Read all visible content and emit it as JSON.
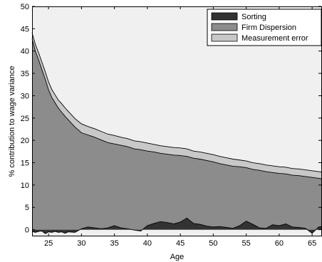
{
  "chart_data": {
    "type": "area",
    "title": "",
    "xlabel": "Age",
    "ylabel": "% contribution to wage variance",
    "xlim": [
      22.5,
      66.5
    ],
    "ylim": [
      -1.5,
      50
    ],
    "xticks": [
      25,
      30,
      35,
      40,
      45,
      50,
      55,
      60,
      65
    ],
    "yticks": [
      0,
      5,
      10,
      15,
      20,
      25,
      30,
      35,
      40,
      45,
      50
    ],
    "grid": false,
    "legend": "top-right",
    "x": [
      22.5,
      23,
      23.5,
      24,
      24.5,
      25,
      25.5,
      26,
      26.5,
      27,
      27.5,
      28,
      29,
      30,
      31,
      32,
      33,
      34,
      35,
      36,
      37,
      38,
      39,
      40,
      41,
      42,
      43,
      44,
      45,
      46,
      47,
      48,
      49,
      50,
      51,
      52,
      53,
      54,
      55,
      56,
      57,
      58,
      59,
      60,
      61,
      62,
      63,
      64,
      65,
      66,
      66.5
    ],
    "series": [
      {
        "name": "Sorting",
        "color": "#333333",
        "values": [
          -0.4,
          -0.6,
          -0.4,
          -0.3,
          -0.9,
          -0.5,
          -0.6,
          -0.4,
          -0.6,
          -0.5,
          -0.8,
          -0.5,
          -0.6,
          0.2,
          0.6,
          0.4,
          0.2,
          0.4,
          0.9,
          0.4,
          0.2,
          -0.1,
          -0.3,
          0.9,
          1.4,
          1.8,
          1.6,
          1.3,
          1.7,
          2.6,
          1.4,
          1.2,
          0.8,
          0.6,
          0.7,
          0.5,
          0.3,
          0.9,
          1.9,
          1.2,
          0.4,
          0.3,
          1.1,
          0.9,
          1.3,
          0.6,
          0.5,
          0.3,
          -0.8,
          0.6,
          0.7
        ]
      },
      {
        "name": "Firm Dispersion",
        "color": "#8c8c8c",
        "values": [
          42.8,
          40.0,
          38.0,
          35.8,
          33.7,
          31.3,
          29.6,
          28.4,
          27.2,
          26.3,
          25.4,
          24.6,
          23.0,
          21.7,
          21.2,
          20.7,
          20.1,
          19.5,
          19.2,
          18.9,
          18.6,
          18.1,
          17.9,
          17.6,
          17.4,
          17.1,
          16.9,
          16.7,
          16.6,
          16.4,
          16.0,
          15.8,
          15.5,
          15.2,
          14.8,
          14.5,
          14.2,
          14.1,
          13.9,
          13.5,
          13.3,
          13.0,
          12.8,
          12.6,
          12.5,
          12.2,
          12.1,
          11.9,
          11.7,
          11.5,
          11.4
        ]
      },
      {
        "name": "Measurement error",
        "color": "#c8c8c8",
        "values": [
          1.3,
          1.5,
          1.6,
          1.7,
          1.7,
          1.8,
          1.8,
          1.8,
          1.8,
          1.9,
          1.9,
          1.9,
          1.9,
          2.0,
          1.9,
          1.9,
          1.9,
          1.9,
          1.9,
          1.8,
          1.8,
          1.8,
          1.8,
          1.8,
          1.7,
          1.7,
          1.7,
          1.7,
          1.7,
          1.7,
          1.6,
          1.6,
          1.6,
          1.6,
          1.6,
          1.6,
          1.6,
          1.5,
          1.5,
          1.5,
          1.5,
          1.5,
          1.5,
          1.5,
          1.5,
          1.5,
          1.5,
          1.5,
          1.5,
          1.5,
          1.5
        ]
      }
    ],
    "background_color": "#f0f0f0"
  }
}
